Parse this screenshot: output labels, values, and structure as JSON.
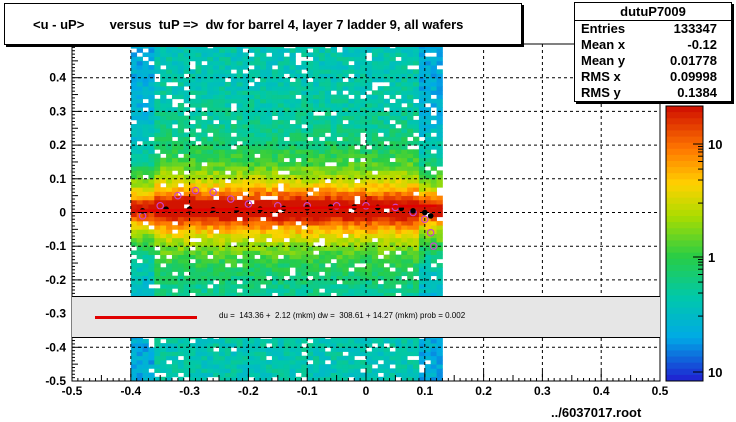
{
  "chart_data": {
    "type": "heatmap",
    "title": "<u - uP>       versus  tuP =>  dw for barrel 4, layer 7 ladder 9, all wafers",
    "xlim": [
      -0.5,
      0.5
    ],
    "ylim": [
      -0.5,
      0.5
    ],
    "x_ticks": [
      "-0.5",
      "-0.4",
      "-0.3",
      "-0.2",
      "-0.1",
      "0",
      "0.1",
      "0.2",
      "0.3",
      "0.4",
      "0.5"
    ],
    "y_ticks": [
      "-0.5",
      "-0.4",
      "-0.3",
      "-0.2",
      "-0.1",
      "0",
      "0.1",
      "0.2",
      "0.3",
      "0.4"
    ],
    "grid": true,
    "z_scale": "log",
    "z_ticks": [
      "10",
      "1",
      "10"
    ],
    "occupied_x_range": [
      -0.39,
      0.12
    ],
    "ridge_y": 0.01,
    "profile_black": {
      "x": [
        -0.38,
        -0.34,
        -0.3,
        -0.26,
        -0.22,
        -0.18,
        -0.14,
        -0.1,
        -0.06,
        -0.02,
        0.02,
        0.06,
        0.08,
        0.1,
        0.11
      ],
      "y": [
        0.005,
        0.01,
        0.01,
        0.008,
        0.008,
        0.01,
        0.012,
        0.014,
        0.016,
        0.016,
        0.015,
        0.012,
        0.005,
        0.0,
        -0.01
      ]
    },
    "profile_magenta": {
      "x": [
        -0.38,
        -0.35,
        -0.32,
        -0.29,
        -0.26,
        -0.23,
        -0.2,
        -0.15,
        -0.1,
        -0.05,
        0.0,
        0.05,
        0.08,
        0.1,
        0.11,
        0.115
      ],
      "y": [
        -0.01,
        0.02,
        0.05,
        0.065,
        0.06,
        0.04,
        0.025,
        0.02,
        0.02,
        0.02,
        0.02,
        0.015,
        0.0,
        -0.02,
        -0.06,
        -0.1
      ]
    },
    "fit_line": {
      "x": [
        -0.39,
        0.12
      ],
      "y": [
        0.005,
        0.02
      ]
    }
  },
  "stats": {
    "name": "dutuP7009",
    "rows": [
      {
        "label": "Entries",
        "value": "133347"
      },
      {
        "label": "Mean x",
        "value": "-0.12"
      },
      {
        "label": "Mean y",
        "value": "0.01778"
      },
      {
        "label": "RMS x",
        "value": "0.09998"
      },
      {
        "label": "RMS y",
        "value": "0.1384"
      }
    ]
  },
  "fit_legend": "du =  143.36 +  2.12 (mkm) dw =  308.61 + 14.27 (mkm) prob = 0.002",
  "footer": "../6037017.root",
  "colors": {
    "fit": "#e00000",
    "profile_black": "#000000",
    "profile_magenta": "#cc44cc"
  }
}
